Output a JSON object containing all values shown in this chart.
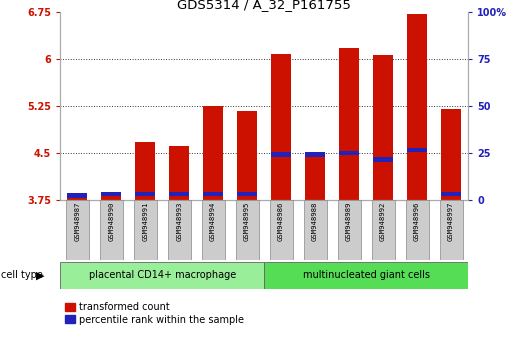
{
  "title": "GDS5314 / A_32_P161755",
  "samples": [
    "GSM948987",
    "GSM948990",
    "GSM948991",
    "GSM948993",
    "GSM948994",
    "GSM948995",
    "GSM948986",
    "GSM948988",
    "GSM948989",
    "GSM948992",
    "GSM948996",
    "GSM948997"
  ],
  "transformed_count": [
    3.82,
    3.85,
    4.68,
    4.62,
    5.25,
    5.17,
    6.08,
    4.48,
    6.18,
    6.07,
    6.72,
    5.2
  ],
  "percentile_rank_y": [
    3.82,
    3.85,
    3.85,
    3.85,
    3.85,
    3.85,
    4.48,
    4.48,
    4.5,
    4.4,
    4.55,
    3.85
  ],
  "groups": [
    {
      "label": "placental CD14+ macrophage",
      "start": 0,
      "end": 6,
      "color": "#99ee99"
    },
    {
      "label": "multinucleated giant cells",
      "start": 6,
      "end": 12,
      "color": "#55dd55"
    }
  ],
  "y_min": 3.75,
  "y_max": 6.75,
  "y_ticks": [
    3.75,
    4.5,
    5.25,
    6.0,
    6.75
  ],
  "y_tick_labels": [
    "3.75",
    "4.5",
    "5.25",
    "6",
    "6.75"
  ],
  "y2_tick_percents": [
    0,
    25,
    50,
    75,
    100
  ],
  "bar_color_red": "#cc1100",
  "bar_color_blue": "#2222bb",
  "bar_width": 0.6,
  "grid_color": "#333333",
  "legend_red_label": "transformed count",
  "legend_blue_label": "percentile rank within the sample",
  "cell_type_label": "cell type",
  "tick_color_left": "#cc1100",
  "tick_color_right": "#2222bb",
  "blue_bar_height": 0.07,
  "sample_box_color": "#cccccc",
  "sample_box_edge": "#888888"
}
